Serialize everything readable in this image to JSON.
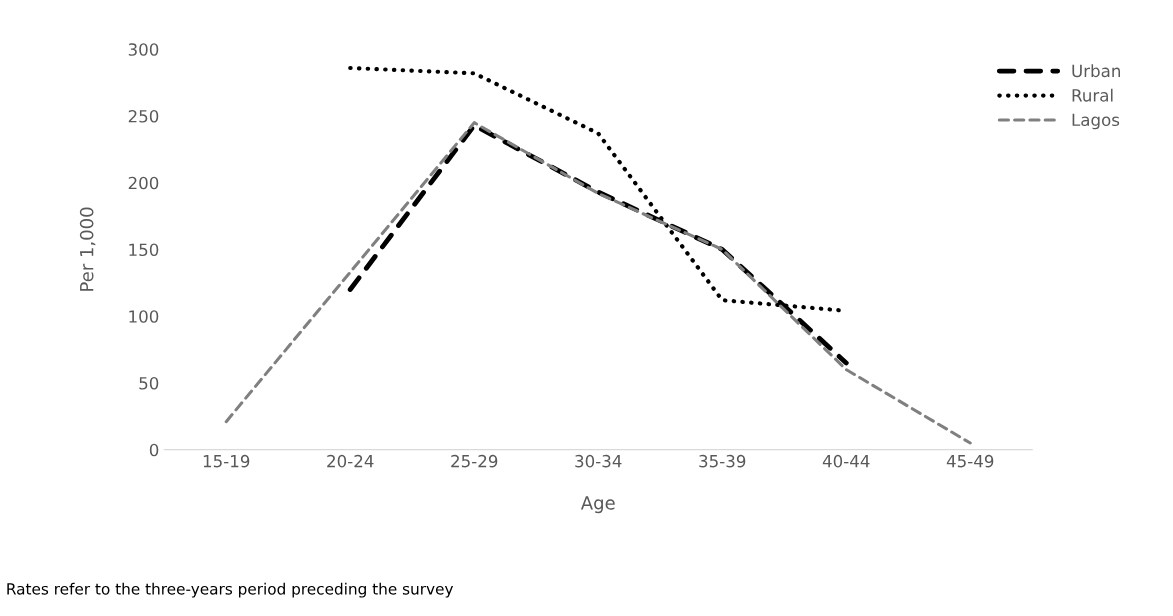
{
  "chart_data": {
    "type": "line",
    "xlabel": "Age",
    "ylabel": "Per 1,000",
    "categories": [
      "15-19",
      "20-24",
      "25-29",
      "30-34",
      "35-39",
      "40-44",
      "45-49"
    ],
    "series": [
      {
        "name": "Urban",
        "color": "#000000",
        "line_style": "dashed",
        "values": [
          null,
          120,
          243,
          193,
          150,
          65,
          null
        ]
      },
      {
        "name": "Rural",
        "color": "#000000",
        "line_style": "dotted",
        "values": [
          null,
          286,
          282,
          237,
          112,
          104,
          null
        ]
      },
      {
        "name": "Lagos",
        "color": "#808080",
        "line_style": "dashed",
        "values": [
          21,
          133,
          245,
          192,
          150,
          60,
          5
        ]
      }
    ],
    "ylim": [
      0,
      300
    ],
    "yticks": [
      0,
      50,
      100,
      150,
      200,
      250,
      300
    ],
    "grid": false,
    "legend": "top right",
    "marker": "none",
    "annotations": [
      "Rates refer to the three-years period preceding the survey"
    ]
  }
}
